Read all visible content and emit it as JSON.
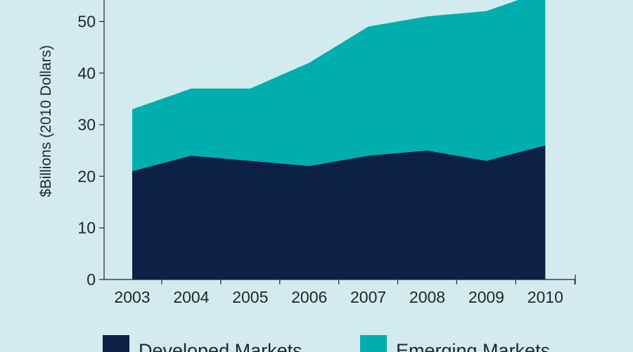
{
  "chart_data": {
    "type": "area",
    "stacked": true,
    "title": "",
    "xlabel": "",
    "ylabel": "$Billions (2010 Dollars)",
    "ylim": [
      0,
      55
    ],
    "yticks": [
      0,
      10,
      20,
      30,
      40,
      50
    ],
    "categories": [
      "2003",
      "2004",
      "2005",
      "2006",
      "2007",
      "2008",
      "2009",
      "2010"
    ],
    "series": [
      {
        "name": "Developed Markets",
        "color": "#0b2146",
        "values": [
          21,
          24,
          23,
          22,
          24,
          25,
          23,
          26
        ]
      },
      {
        "name": "Emerging Markets",
        "color": "#00aeae",
        "values": [
          12,
          13,
          14,
          20,
          25,
          26,
          29,
          30
        ]
      }
    ],
    "legend_position": "bottom"
  }
}
